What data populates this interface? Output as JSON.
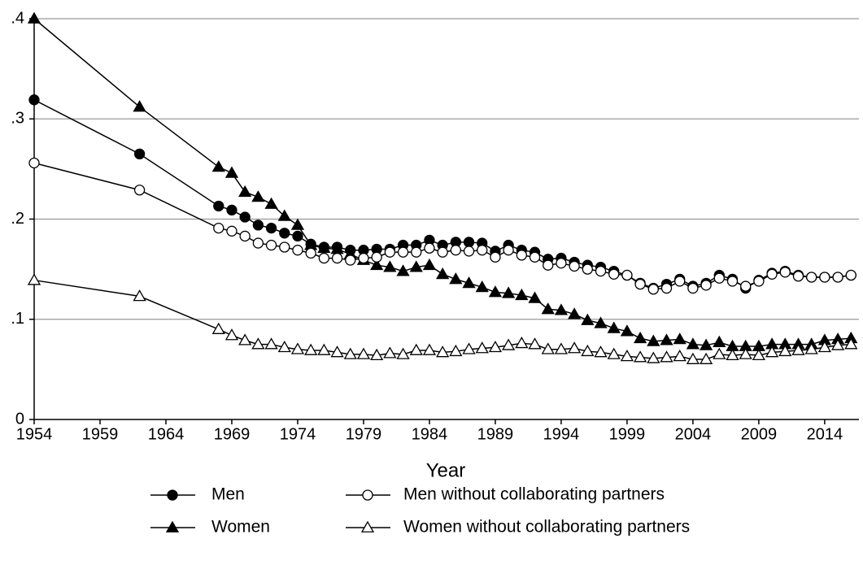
{
  "chart_data": {
    "type": "line",
    "x_label": "Year",
    "x": [
      1954,
      1962,
      1968,
      1969,
      1970,
      1971,
      1972,
      1973,
      1974,
      1975,
      1976,
      1977,
      1978,
      1979,
      1980,
      1981,
      1982,
      1983,
      1984,
      1985,
      1986,
      1987,
      1988,
      1989,
      1990,
      1991,
      1992,
      1993,
      1994,
      1995,
      1996,
      1997,
      1998,
      1999,
      2000,
      2001,
      2002,
      2003,
      2004,
      2005,
      2006,
      2007,
      2008,
      2009,
      2010,
      2011,
      2012,
      2013,
      2014,
      2015,
      2016
    ],
    "xlim": [
      1954,
      2016.6
    ],
    "xticks": [
      1954,
      1959,
      1964,
      1969,
      1974,
      1979,
      1984,
      1989,
      1994,
      1999,
      2004,
      2009,
      2014
    ],
    "ylim": [
      0,
      0.4
    ],
    "yticks": [
      0,
      {
        "value": 0.1,
        "label": ".1"
      },
      {
        "value": 0.2,
        "label": ".2"
      },
      {
        "value": 0.3,
        "label": ".3"
      },
      {
        "value": 0.4,
        "label": ".4"
      }
    ],
    "grid": true,
    "series": [
      {
        "name": "Men",
        "color": "#000000",
        "marker": "circle",
        "filled": true,
        "values": [
          0.319,
          0.265,
          0.213,
          0.209,
          0.202,
          0.194,
          0.191,
          0.186,
          0.183,
          0.175,
          0.172,
          0.172,
          0.169,
          0.169,
          0.17,
          0.17,
          0.174,
          0.174,
          0.179,
          0.174,
          0.177,
          0.177,
          0.176,
          0.168,
          0.174,
          0.169,
          0.167,
          0.16,
          0.161,
          0.157,
          0.154,
          0.152,
          0.148,
          0.144,
          0.136,
          0.131,
          0.135,
          0.14,
          0.133,
          0.136,
          0.144,
          0.14,
          0.131,
          0.139,
          0.146,
          0.148,
          0.144,
          0.142,
          0.142,
          0.142,
          0.144
        ]
      },
      {
        "name": "Women",
        "color": "#000000",
        "marker": "triangle",
        "filled": true,
        "values": [
          0.4,
          0.312,
          0.252,
          0.246,
          0.227,
          0.222,
          0.215,
          0.203,
          0.194,
          0.174,
          0.171,
          0.17,
          0.165,
          0.159,
          0.154,
          0.152,
          0.148,
          0.152,
          0.154,
          0.145,
          0.14,
          0.136,
          0.132,
          0.127,
          0.126,
          0.124,
          0.121,
          0.11,
          0.109,
          0.105,
          0.099,
          0.096,
          0.091,
          0.088,
          0.081,
          0.078,
          0.079,
          0.08,
          0.075,
          0.074,
          0.077,
          0.073,
          0.073,
          0.073,
          0.075,
          0.075,
          0.075,
          0.075,
          0.079,
          0.08,
          0.081
        ]
      },
      {
        "name": "Men without collaborating partners",
        "color": "#000000",
        "marker": "circle",
        "filled": false,
        "values": [
          0.256,
          0.229,
          0.191,
          0.188,
          0.183,
          0.176,
          0.174,
          0.172,
          0.169,
          0.166,
          0.161,
          0.161,
          0.159,
          0.161,
          0.162,
          0.167,
          0.167,
          0.167,
          0.171,
          0.167,
          0.169,
          0.168,
          0.169,
          0.162,
          0.169,
          0.164,
          0.162,
          0.154,
          0.156,
          0.153,
          0.15,
          0.148,
          0.145,
          0.144,
          0.135,
          0.13,
          0.131,
          0.138,
          0.131,
          0.134,
          0.141,
          0.138,
          0.133,
          0.138,
          0.145,
          0.147,
          0.143,
          0.142,
          0.142,
          0.142,
          0.144
        ]
      },
      {
        "name": "Women without collaborating partners",
        "color": "#000000",
        "marker": "triangle",
        "filled": false,
        "values": [
          0.139,
          0.123,
          0.09,
          0.084,
          0.079,
          0.075,
          0.075,
          0.072,
          0.07,
          0.069,
          0.069,
          0.067,
          0.065,
          0.065,
          0.064,
          0.066,
          0.065,
          0.069,
          0.069,
          0.067,
          0.068,
          0.07,
          0.071,
          0.072,
          0.074,
          0.076,
          0.075,
          0.07,
          0.07,
          0.071,
          0.068,
          0.067,
          0.065,
          0.063,
          0.062,
          0.061,
          0.062,
          0.063,
          0.06,
          0.06,
          0.065,
          0.064,
          0.065,
          0.064,
          0.067,
          0.068,
          0.069,
          0.07,
          0.072,
          0.074,
          0.075
        ]
      }
    ]
  }
}
